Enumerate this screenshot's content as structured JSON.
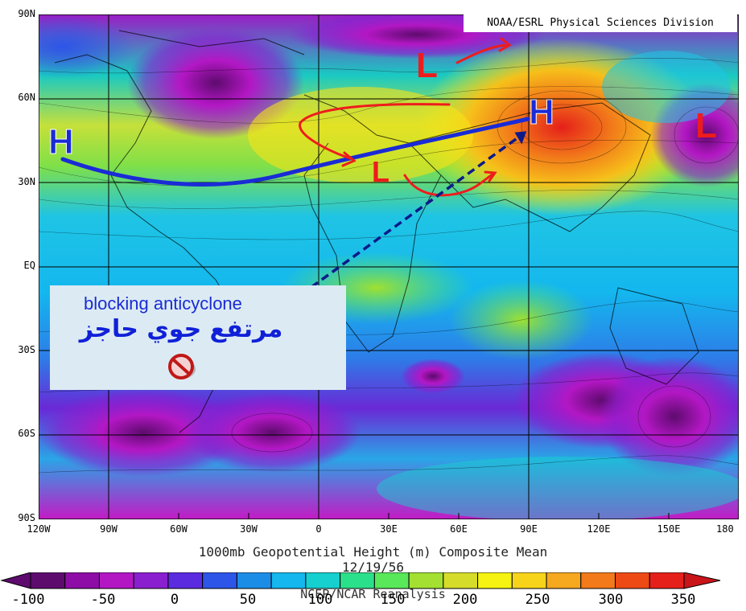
{
  "credit": "NOAA/ESRL Physical Sciences Division",
  "titles": {
    "line1": "1000mb Geopotential Height (m) Composite Mean",
    "line2": "12/19/56",
    "line3": "NCEP/NCAR Reanalysis"
  },
  "lat_labels": [
    "90N",
    "60N",
    "30N",
    "EQ",
    "30S",
    "60S",
    "90S"
  ],
  "lon_labels": [
    "120W",
    "90W",
    "60W",
    "30W",
    "0",
    "30E",
    "60E",
    "90E",
    "120E",
    "150E",
    "180"
  ],
  "colorbar": {
    "labels": [
      "-100",
      "-50",
      "0",
      "50",
      "100",
      "150",
      "200",
      "250",
      "300",
      "350"
    ],
    "colors": [
      "#5e0b6e",
      "#8e0da6",
      "#b317c4",
      "#8a1fd0",
      "#5b2be0",
      "#2d55e8",
      "#1c8de6",
      "#14b7ee",
      "#16d0cf",
      "#2be08a",
      "#58e85a",
      "#a3e032",
      "#d6dc2a",
      "#f6f312",
      "#f7d41a",
      "#f6a81e",
      "#f27a1a",
      "#ee4a16",
      "#e5201a"
    ]
  },
  "annotation": {
    "english": "blocking anticyclone",
    "arabic": "مرتفع جوي حاجز",
    "icon": "prohibited-icon"
  },
  "pressure_systems": [
    {
      "label": "H",
      "color": "#1a2bd6",
      "name": "high-atlantic"
    },
    {
      "label": "H",
      "color": "#1a2bd6",
      "name": "high-siberia"
    },
    {
      "label": "L",
      "color": "#ee1c1c",
      "name": "low-arctic"
    },
    {
      "label": "L",
      "color": "#ee1c1c",
      "name": "low-mediterranean"
    },
    {
      "label": "L",
      "color": "#ee1c1c",
      "name": "low-pacific"
    }
  ]
}
